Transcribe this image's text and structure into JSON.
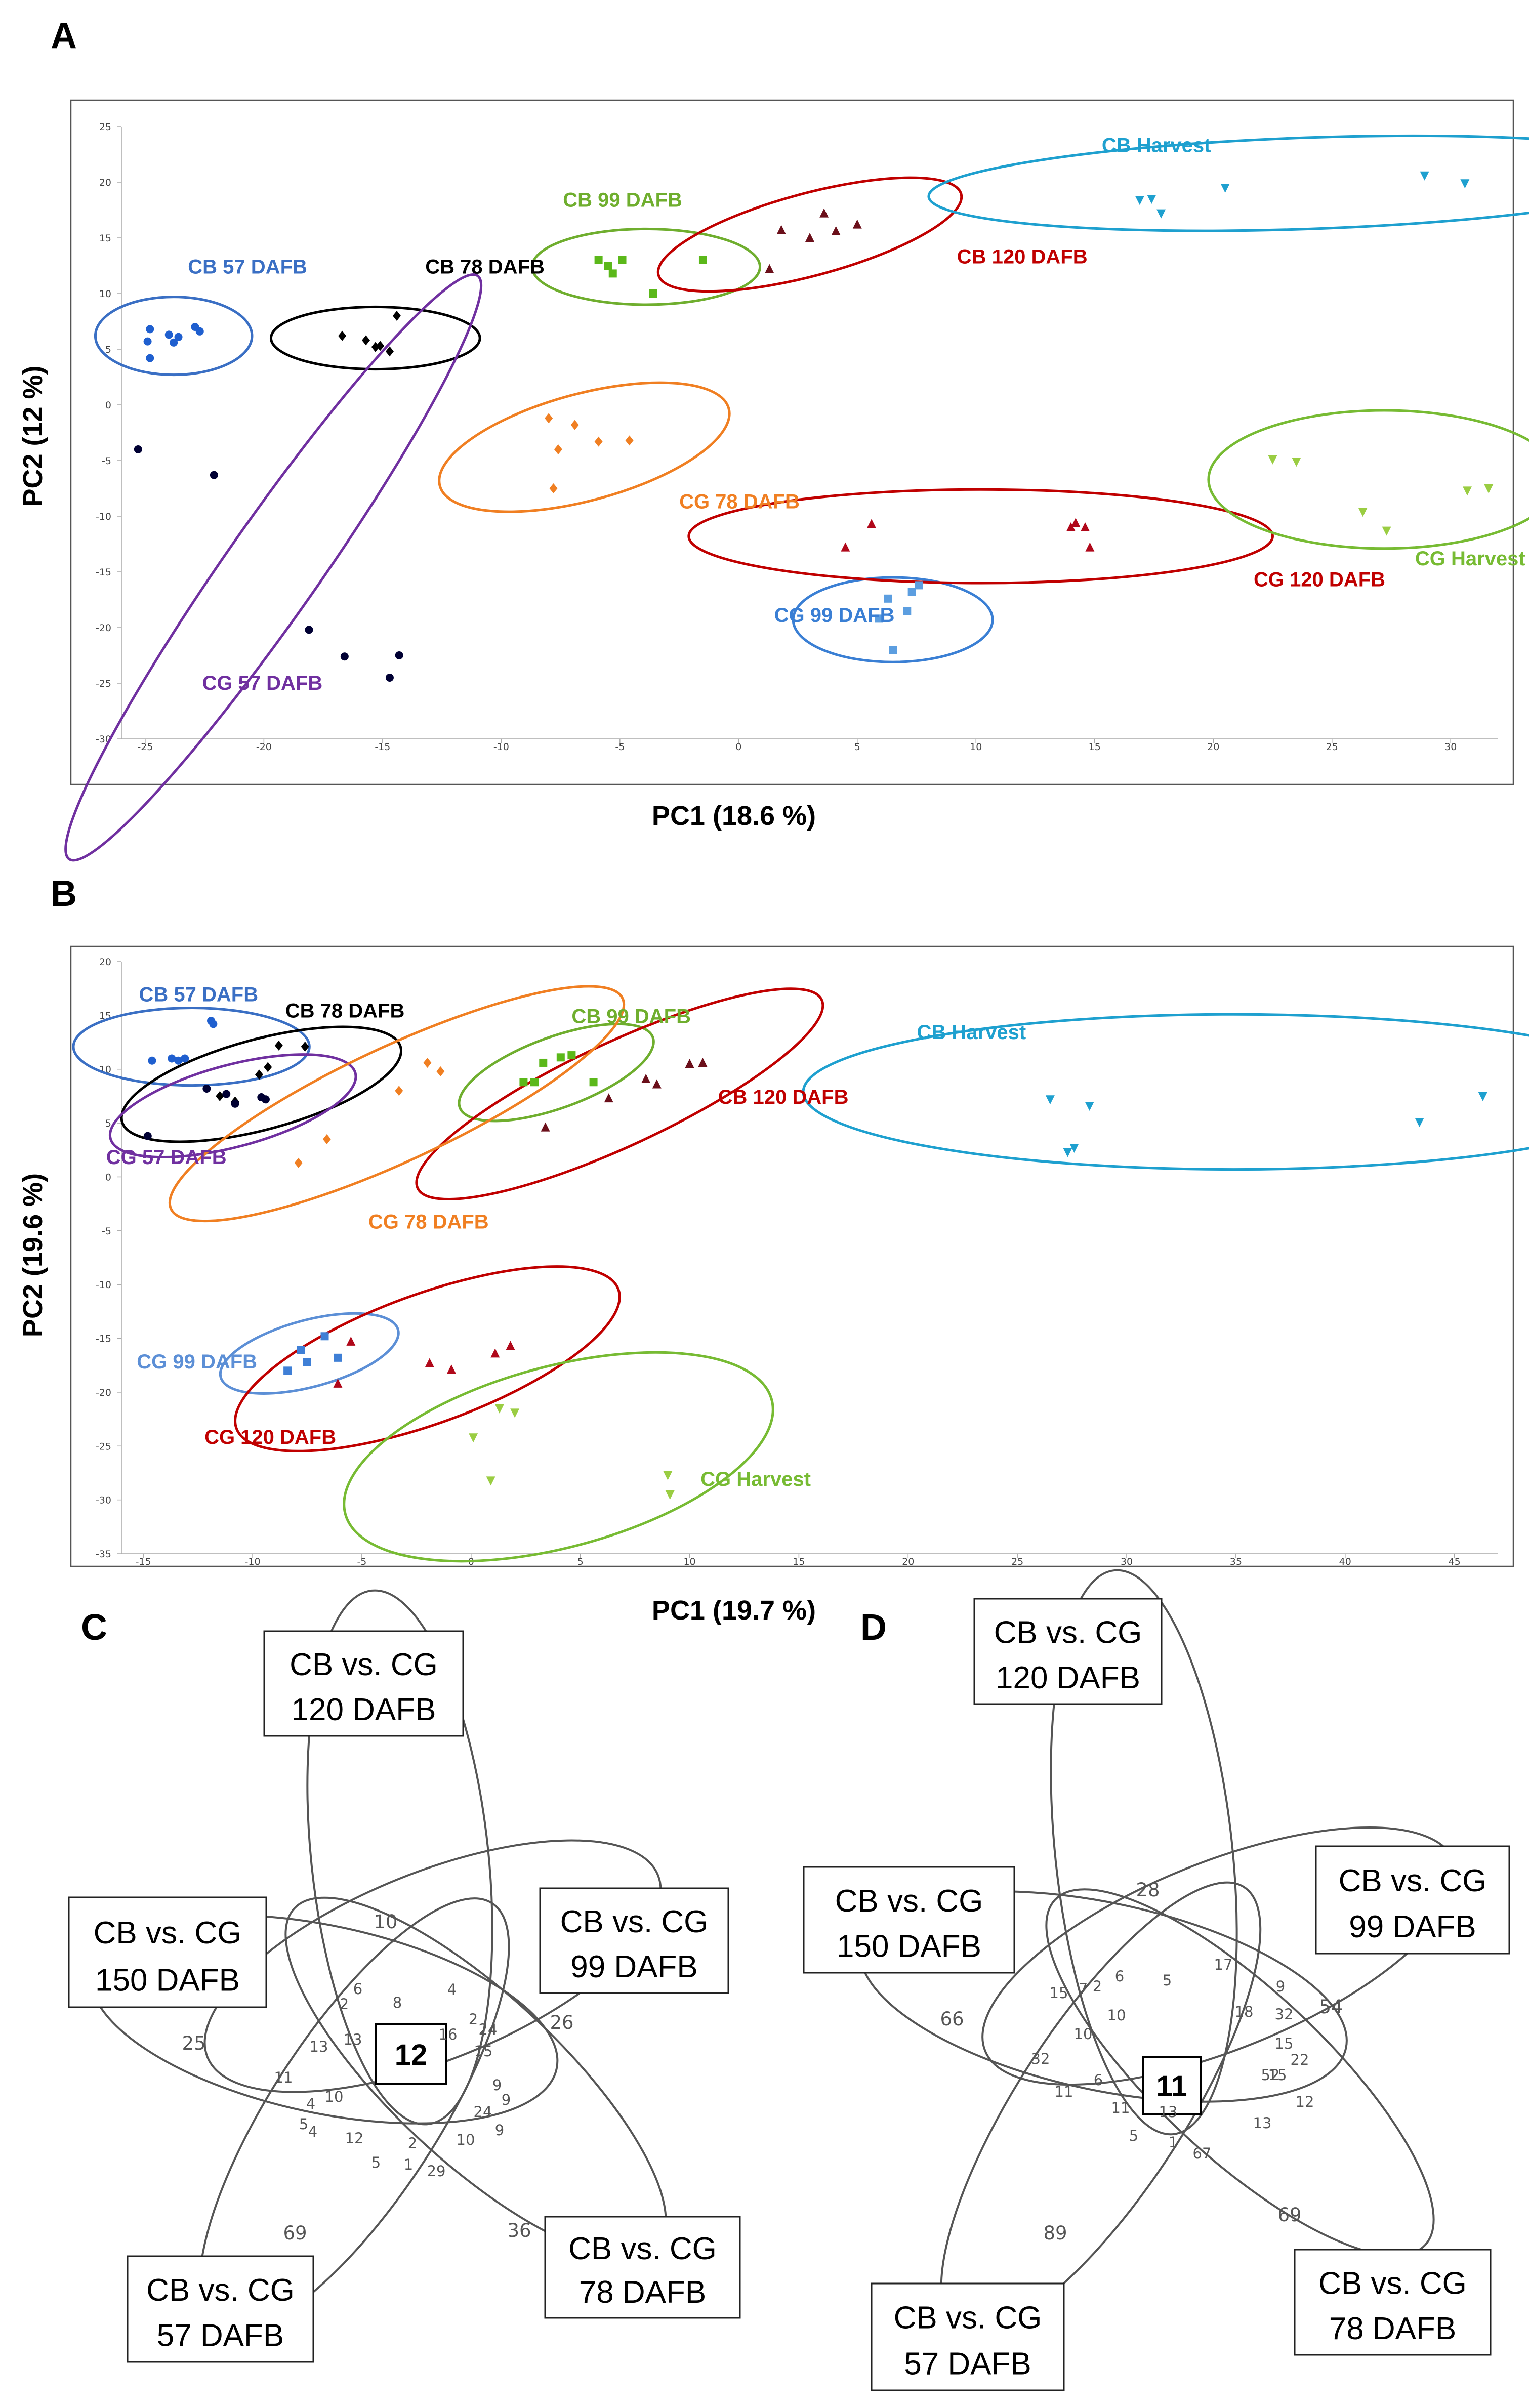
{
  "chart_data": [
    {
      "panel": "A",
      "type": "scatter",
      "xlabel": "PC1 (18.6 %)",
      "ylabel": "PC2 (12 %)",
      "xlim": [
        -26,
        32
      ],
      "ylim": [
        -30,
        25
      ],
      "xticks": [
        -25,
        -20,
        -15,
        -10,
        -5,
        0,
        5,
        10,
        15,
        20,
        25,
        30
      ],
      "yticks": [
        -30,
        -25,
        -20,
        -15,
        -10,
        -5,
        0,
        5,
        10,
        15,
        20,
        25
      ],
      "grid": false,
      "groups": [
        {
          "name": "CB 57 DAFB",
          "color": "#1f5fcf",
          "label_color": "#3a6fc4",
          "marker": "circle",
          "points": [
            [
              -24.8,
              4.2
            ],
            [
              -24.8,
              6.8
            ],
            [
              -24,
              6.3
            ],
            [
              -23.6,
              6.1
            ],
            [
              -22.9,
              7
            ],
            [
              -22.7,
              6.6
            ],
            [
              -24.9,
              5.7
            ],
            [
              -23.8,
              5.6
            ]
          ],
          "ellipse": {
            "cx": -23.8,
            "cy": 6.2,
            "rx": 3.3,
            "ry": 3.5,
            "angle": 0
          },
          "label_pos": [
            -23.2,
            11.8
          ]
        },
        {
          "name": "CB 78 DAFB",
          "color": "#000000",
          "label_color": "#000000",
          "marker": "diamond",
          "points": [
            [
              -16.7,
              6.2
            ],
            [
              -15.7,
              5.8
            ],
            [
              -15.3,
              5.2
            ],
            [
              -14.7,
              4.8
            ],
            [
              -14.4,
              8.0
            ],
            [
              -15.1,
              5.3
            ]
          ],
          "ellipse": {
            "cx": -15.3,
            "cy": 6.0,
            "rx": 4.4,
            "ry": 2.8,
            "angle": 0
          },
          "label_pos": [
            -13.2,
            11.8
          ]
        },
        {
          "name": "CB 99 DAFB",
          "color": "#5bb81a",
          "label_color": "#6fae2e",
          "marker": "square",
          "points": [
            [
              -5.9,
              13
            ],
            [
              -5.5,
              12.5
            ],
            [
              -5.3,
              11.8
            ],
            [
              -4.9,
              13
            ],
            [
              -3.6,
              10
            ],
            [
              -1.5,
              13
            ]
          ],
          "ellipse": {
            "cx": -3.9,
            "cy": 12.4,
            "rx": 4.8,
            "ry": 3.4,
            "angle": 0
          },
          "label_pos": [
            -7.4,
            17.8
          ]
        },
        {
          "name": "CB 120 DAFB",
          "color": "#6b0f1a",
          "label_color": "#c00000",
          "marker": "triangle",
          "points": [
            [
              1.3,
              12.2
            ],
            [
              1.8,
              15.7
            ],
            [
              3,
              15
            ],
            [
              3.6,
              17.2
            ],
            [
              4.1,
              15.6
            ],
            [
              5,
              16.2
            ]
          ],
          "ellipse": {
            "cx": 3.0,
            "cy": 15.3,
            "rx": 6.6,
            "ry": 3.7,
            "angle": -15
          },
          "label_pos": [
            9.2,
            12.7
          ]
        },
        {
          "name": "CB Harvest",
          "color": "#1ea0cf",
          "label_color": "#1ea0cf",
          "marker": "triangle-down",
          "points": [
            [
              16.9,
              18.4
            ],
            [
              17.4,
              18.5
            ],
            [
              17.8,
              17.2
            ],
            [
              20.5,
              19.5
            ],
            [
              28.9,
              20.6
            ],
            [
              30.6,
              19.9
            ]
          ],
          "ellipse": {
            "cx": 24.0,
            "cy": 19.9,
            "rx": 16.0,
            "ry": 4.1,
            "angle": -2
          },
          "label_pos": [
            15.3,
            22.7
          ]
        },
        {
          "name": "CG 57 DAFB",
          "color": "#000033",
          "label_color": "#7030a0",
          "marker": "circle",
          "points": [
            [
              -25.3,
              -4
            ],
            [
              -22.1,
              -6.3
            ],
            [
              -18.1,
              -20.2
            ],
            [
              -16.6,
              -22.6
            ],
            [
              -14.7,
              -24.5
            ],
            [
              -14.3,
              -22.5
            ]
          ],
          "ellipse": {
            "cx": -19.6,
            "cy": -14.6,
            "rx": 15.0,
            "ry": 4.2,
            "angle": -55
          },
          "label_pos": [
            -22.6,
            -25.6
          ]
        },
        {
          "name": "CG 78 DAFB",
          "color": "#f07f22",
          "label_color": "#f07f22",
          "marker": "diamond",
          "points": [
            [
              -8,
              -1.2
            ],
            [
              -7.8,
              -7.5
            ],
            [
              -7.6,
              -4
            ],
            [
              -6.9,
              -1.8
            ],
            [
              -5.9,
              -3.3
            ],
            [
              -4.6,
              -3.2
            ]
          ],
          "ellipse": {
            "cx": -6.5,
            "cy": -3.8,
            "rx": 6.3,
            "ry": 4.8,
            "angle": -15
          },
          "label_pos": [
            -2.5,
            -9.3
          ]
        },
        {
          "name": "CG 99 DAFB",
          "color": "#5c9ee0",
          "label_color": "#3a7fd4",
          "marker": "square",
          "points": [
            [
              5.9,
              -19.2
            ],
            [
              6.3,
              -17.4
            ],
            [
              6.5,
              -22
            ],
            [
              7.1,
              -18.5
            ],
            [
              7.3,
              -16.8
            ],
            [
              7.6,
              -16.2
            ]
          ],
          "ellipse": {
            "cx": 6.5,
            "cy": -19.3,
            "rx": 4.2,
            "ry": 3.8,
            "angle": 0
          },
          "label_pos": [
            1.5,
            -19.5
          ]
        },
        {
          "name": "CG 120 DAFB",
          "color": "#b0081a",
          "label_color": "#c00000",
          "marker": "triangle",
          "points": [
            [
              4.5,
              -12.8
            ],
            [
              5.6,
              -10.7
            ],
            [
              14,
              -11
            ],
            [
              14.2,
              -10.6
            ],
            [
              14.6,
              -11
            ],
            [
              14.8,
              -12.8
            ]
          ],
          "ellipse": {
            "cx": 10.2,
            "cy": -11.8,
            "rx": 12.3,
            "ry": 4.2,
            "angle": 0
          },
          "label_pos": [
            21.7,
            -16.3
          ]
        },
        {
          "name": "CG Harvest",
          "color": "#9acd42",
          "label_color": "#77bb33",
          "marker": "triangle-down",
          "points": [
            [
              22.5,
              -4.9
            ],
            [
              23.5,
              -5.1
            ],
            [
              26.3,
              -9.6
            ],
            [
              27.3,
              -11.3
            ],
            [
              30.7,
              -7.7
            ],
            [
              31.6,
              -7.5
            ]
          ],
          "ellipse": {
            "cx": 27.2,
            "cy": -6.7,
            "rx": 7.4,
            "ry": 6.2,
            "angle": 0
          },
          "label_pos": [
            28.5,
            -14.4
          ]
        }
      ]
    },
    {
      "panel": "B",
      "type": "scatter",
      "xlabel": "PC1 (19.7 %)",
      "ylabel": "PC2 (19.6 %)",
      "xlim": [
        -16,
        47
      ],
      "ylim": [
        -35,
        20
      ],
      "xticks": [
        -15,
        -10,
        -5,
        0,
        5,
        10,
        15,
        20,
        25,
        30,
        35,
        40,
        45
      ],
      "yticks": [
        -35,
        -30,
        -25,
        -20,
        -15,
        -10,
        -5,
        0,
        5,
        10,
        15,
        20
      ],
      "grid": false,
      "groups": [
        {
          "name": "CB 57 DAFB",
          "color": "#1f5fcf",
          "label_color": "#3a6fc4",
          "marker": "circle",
          "points": [
            [
              -14.6,
              10.8
            ],
            [
              -13.7,
              11
            ],
            [
              -13.4,
              10.8
            ],
            [
              -13.1,
              11
            ],
            [
              -11.9,
              14.5
            ],
            [
              -11.8,
              14.2
            ]
          ],
          "ellipse": {
            "cx": -12.8,
            "cy": 12.1,
            "rx": 5.4,
            "ry": 3.6,
            "angle": 0
          },
          "label_pos": [
            -15.2,
            16.3
          ]
        },
        {
          "name": "CB 78 DAFB",
          "color": "#000000",
          "label_color": "#000000",
          "marker": "diamond",
          "points": [
            [
              -11.5,
              7.5
            ],
            [
              -9.7,
              9.5
            ],
            [
              -9.3,
              10.2
            ],
            [
              -8.8,
              12.2
            ],
            [
              -7.6,
              12.1
            ],
            [
              -10.8,
              7.0
            ]
          ],
          "ellipse": {
            "cx": -9.6,
            "cy": 8.6,
            "rx": 6.6,
            "ry": 4.2,
            "angle": -15
          },
          "label_pos": [
            -8.5,
            14.8
          ]
        },
        {
          "name": "CB 99 DAFB",
          "color": "#5bb81a",
          "label_color": "#6fae2e",
          "marker": "square",
          "points": [
            [
              2.4,
              8.8
            ],
            [
              2.9,
              8.8
            ],
            [
              3.3,
              10.6
            ],
            [
              4.1,
              11.1
            ],
            [
              4.6,
              11.3
            ],
            [
              5.6,
              8.8
            ]
          ],
          "ellipse": {
            "cx": 3.9,
            "cy": 9.7,
            "rx": 4.7,
            "ry": 3.3,
            "angle": -20
          },
          "label_pos": [
            4.6,
            14.3
          ]
        },
        {
          "name": "CB 120 DAFB",
          "color": "#6b0f1a",
          "label_color": "#c00000",
          "marker": "triangle",
          "points": [
            [
              3.4,
              4.6
            ],
            [
              6.3,
              7.3
            ],
            [
              8,
              9.1
            ],
            [
              8.5,
              8.6
            ],
            [
              10,
              10.5
            ],
            [
              10.6,
              10.6
            ]
          ],
          "ellipse": {
            "cx": 6.8,
            "cy": 7.7,
            "rx": 10.2,
            "ry": 4.8,
            "angle": -25
          },
          "label_pos": [
            11.3,
            6.8
          ]
        },
        {
          "name": "CB Harvest",
          "color": "#1ea0cf",
          "label_color": "#1ea0cf",
          "marker": "triangle-down",
          "points": [
            [
              26.5,
              7.2
            ],
            [
              27.3,
              2.3
            ],
            [
              27.6,
              2.7
            ],
            [
              28.3,
              6.6
            ],
            [
              43.4,
              5.1
            ],
            [
              46.3,
              7.5
            ]
          ],
          "ellipse": {
            "cx": 34.9,
            "cy": 7.9,
            "rx": 19.7,
            "ry": 7.2,
            "angle": 0
          },
          "label_pos": [
            20.4,
            12.8
          ]
        },
        {
          "name": "CG 57 DAFB",
          "color": "#000033",
          "label_color": "#7030a0",
          "marker": "circle",
          "points": [
            [
              -14.8,
              3.8
            ],
            [
              -12.1,
              8.2
            ],
            [
              -11.2,
              7.7
            ],
            [
              -10.8,
              6.8
            ],
            [
              -9.4,
              7.2
            ],
            [
              -9.6,
              7.4
            ]
          ],
          "ellipse": {
            "cx": -10.9,
            "cy": 6.6,
            "rx": 5.8,
            "ry": 3.8,
            "angle": -15
          },
          "label_pos": [
            -16.7,
            1.2
          ]
        },
        {
          "name": "CG 78 DAFB",
          "color": "#f07f22",
          "label_color": "#f07f22",
          "marker": "diamond",
          "points": [
            [
              -7.9,
              1.3
            ],
            [
              -6.6,
              3.5
            ],
            [
              -3.3,
              8
            ],
            [
              -2,
              10.6
            ],
            [
              -1.4,
              9.8
            ]
          ],
          "ellipse": {
            "cx": -3.4,
            "cy": 6.8,
            "rx": 11.4,
            "ry": 5.3,
            "angle": -25
          },
          "label_pos": [
            -4.7,
            -4.8
          ]
        },
        {
          "name": "CG 99 DAFB",
          "color": "#3f7fd6",
          "label_color": "#5c8fd6",
          "marker": "square",
          "points": [
            [
              -8.4,
              -18
            ],
            [
              -7.8,
              -16.1
            ],
            [
              -7.5,
              -17.2
            ],
            [
              -6.7,
              -14.8
            ],
            [
              -6.1,
              -16.8
            ]
          ],
          "ellipse": {
            "cx": -7.4,
            "cy": -16.4,
            "rx": 4.2,
            "ry": 3.1,
            "angle": -15
          },
          "label_pos": [
            -15.3,
            -17.8
          ]
        },
        {
          "name": "CG 120 DAFB",
          "color": "#b0081a",
          "label_color": "#c00000",
          "marker": "triangle",
          "points": [
            [
              -6.1,
              -19.2
            ],
            [
              -5.5,
              -15.3
            ],
            [
              -1.9,
              -17.3
            ],
            [
              -0.9,
              -17.9
            ],
            [
              1.1,
              -16.4
            ],
            [
              1.8,
              -15.7
            ]
          ],
          "ellipse": {
            "cx": -2.0,
            "cy": -16.9,
            "rx": 9.3,
            "ry": 6.0,
            "angle": -20
          },
          "label_pos": [
            -12.2,
            -24.8
          ]
        },
        {
          "name": "CG Harvest",
          "color": "#9acd42",
          "label_color": "#77bb33",
          "marker": "triangle-down",
          "points": [
            [
              0.1,
              -24.2
            ],
            [
              0.9,
              -28.2
            ],
            [
              1.3,
              -21.5
            ],
            [
              2,
              -21.9
            ],
            [
              9,
              -27.7
            ],
            [
              9.1,
              -29.5
            ]
          ],
          "ellipse": {
            "cx": 4.0,
            "cy": -26.0,
            "rx": 10.1,
            "ry": 8.4,
            "angle": -15
          },
          "label_pos": [
            10.5,
            -28.7
          ]
        }
      ]
    },
    {
      "panel": "C",
      "type": "venn",
      "sets": [
        "CB vs. CG\n120 DAFB",
        "CB vs. CG\n99 DAFB",
        "CB vs. CG\n78 DAFB",
        "CB vs. CG\n57 DAFB",
        "CB vs. CG\n150 DAFB"
      ],
      "center": "12",
      "counts": [
        "10",
        "25",
        "26",
        "36",
        "69",
        "6",
        "8",
        "4",
        "2",
        "24",
        "2",
        "16",
        "13",
        "15",
        "13",
        "9",
        "11",
        "9",
        "10",
        "4",
        "24",
        "9",
        "5",
        "10",
        "4",
        "12",
        "2",
        "5",
        "1",
        "29"
      ]
    },
    {
      "panel": "D",
      "type": "venn",
      "sets": [
        "CB vs. CG\n120 DAFB",
        "CB vs. CG\n99 DAFB",
        "CB vs. CG\n78 DAFB",
        "CB vs. CG\n57 DAFB",
        "CB vs. CG\n150 DAFB"
      ],
      "center": "11",
      "counts": [
        "28",
        "66",
        "54",
        "69",
        "89",
        "6",
        "5",
        "17",
        "7",
        "2",
        "15",
        "9",
        "10",
        "10",
        "18",
        "32",
        "32",
        "15",
        "22",
        "52",
        "6",
        "15",
        "11",
        "11",
        "13",
        "12",
        "13",
        "5",
        "1",
        "67"
      ]
    }
  ],
  "venn_box_labels": {
    "C": [
      [
        "CB vs. CG",
        "120 DAFB"
      ],
      [
        "CB vs. CG",
        "99 DAFB"
      ],
      [
        "CB vs. CG",
        "78 DAFB"
      ],
      [
        "CB vs. CG",
        "57 DAFB"
      ],
      [
        "CB vs. CG",
        "150 DAFB"
      ]
    ],
    "D": [
      [
        "CB vs. CG",
        "120 DAFB"
      ],
      [
        "CB vs. CG",
        "99 DAFB"
      ],
      [
        "CB vs. CG",
        "78 DAFB"
      ],
      [
        "CB vs. CG",
        "57 DAFB"
      ],
      [
        "CB vs. CG",
        "150 DAFB"
      ]
    ]
  },
  "panel_letters": [
    "A",
    "B",
    "C",
    "D"
  ]
}
